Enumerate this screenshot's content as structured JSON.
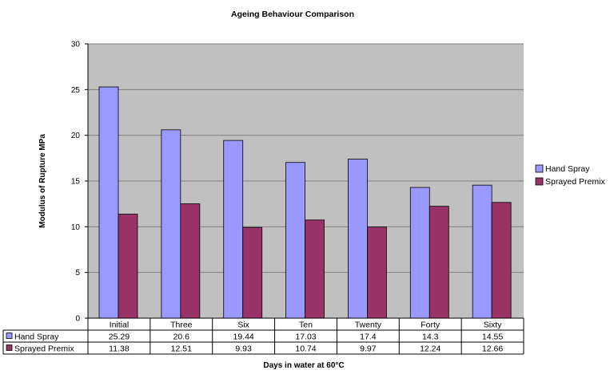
{
  "chart_data": {
    "type": "bar",
    "title": "Ageing Behaviour Comparison",
    "xlabel": "Days in water at 60°C",
    "ylabel": "Modulus of Rupture MPa",
    "categories": [
      "Initial",
      "Three",
      "Six",
      "Ten",
      "Twenty",
      "Forty",
      "Sixty"
    ],
    "series": [
      {
        "name": "Hand Spray",
        "color": "#9999ff",
        "values": [
          25.29,
          20.6,
          19.44,
          17.03,
          17.4,
          14.3,
          14.55
        ],
        "value_labels": [
          "25.29",
          "20.6",
          "19.44",
          "17.03",
          "17.4",
          "14.3",
          "14.55"
        ]
      },
      {
        "name": "Sprayed Premix",
        "color": "#993366",
        "values": [
          11.38,
          12.51,
          9.93,
          10.74,
          9.97,
          12.24,
          12.66
        ],
        "value_labels": [
          "11.38",
          "12.51",
          "9.93",
          "10.74",
          "9.97",
          "12.24",
          "12.66"
        ]
      }
    ],
    "ylim": [
      0,
      30
    ],
    "yticks": [
      0,
      5,
      10,
      15,
      20,
      25,
      30
    ],
    "grid": true,
    "plot_background": "#c0c0c0",
    "legend_position": "right",
    "data_table": true
  }
}
